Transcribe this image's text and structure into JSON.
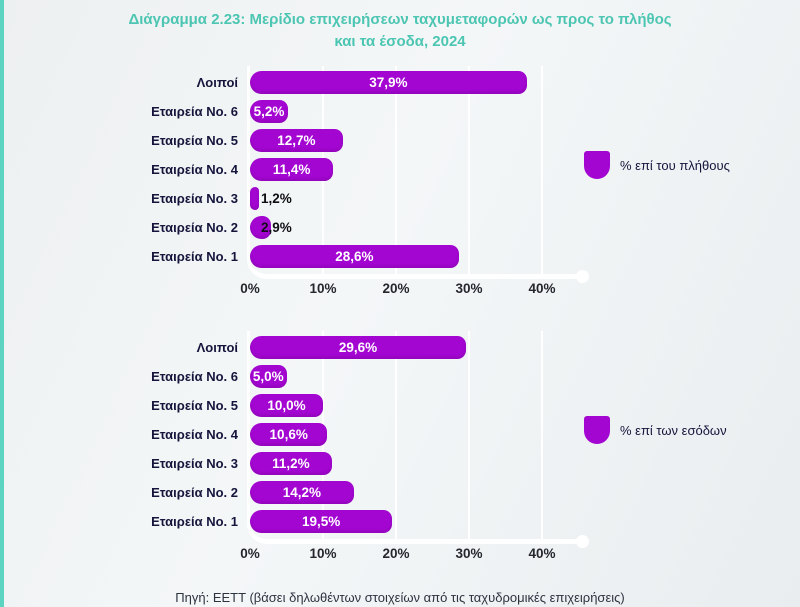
{
  "page": {
    "title": "Διάγραμμα 2.23: Μερίδιο επιχειρήσεων ταχυμεταφορών ως προς το πλήθος και τα έσοδα, 2024",
    "source": "Πηγή: ΕΕΤΤ (βάσει δηλωθέντων στοιχείων από τις ταχυδρομικές επιχειρήσεις)"
  },
  "colors": {
    "bar": "#a406d2",
    "title": "#4cc6b2",
    "edge_stripe": "#5cd4c1",
    "axis_line": "#ffffff",
    "category_text": "#15153c",
    "value_text_light": "#ffffff",
    "value_text_dark": "#0d0d12",
    "source_text": "#2e3340"
  },
  "chart_data": [
    {
      "type": "bar",
      "orientation": "horizontal",
      "legend": "% επί του πλήθους",
      "legend_position": "right",
      "grid": true,
      "categories": [
        "Λοιποί",
        "Εταιρεία No. 6",
        "Εταιρεία No. 5",
        "Εταιρεία No. 4",
        "Εταιρεία No. 3",
        "Εταιρεία No. 2",
        "Εταιρεία No. 1"
      ],
      "values": [
        37.9,
        5.2,
        12.7,
        11.4,
        1.2,
        2.9,
        28.6
      ],
      "value_labels": [
        "37,9%",
        "5,2%",
        "12,7%",
        "11,4%",
        "1,2%",
        "2,9%",
        "28,6%"
      ],
      "x_ticks": [
        "0%",
        "10%",
        "20%",
        "30%",
        "40%"
      ],
      "x_tick_values": [
        0,
        10,
        20,
        30,
        40
      ],
      "xlim": [
        0,
        45
      ]
    },
    {
      "type": "bar",
      "orientation": "horizontal",
      "legend": "% επί των εσόδων",
      "legend_position": "right",
      "grid": true,
      "categories": [
        "Λοιποί",
        "Εταιρεία No. 6",
        "Εταιρεία No. 5",
        "Εταιρεία No. 4",
        "Εταιρεία No. 3",
        "Εταιρεία No. 2",
        "Εταιρεία No. 1"
      ],
      "values": [
        29.6,
        5.0,
        10.0,
        10.6,
        11.2,
        14.2,
        19.5
      ],
      "value_labels": [
        "29,6%",
        "5,0%",
        "10,0%",
        "10,6%",
        "11,2%",
        "14,2%",
        "19,5%"
      ],
      "x_ticks": [
        "0%",
        "10%",
        "20%",
        "30%",
        "40%"
      ],
      "x_tick_values": [
        0,
        10,
        20,
        30,
        40
      ],
      "xlim": [
        0,
        45
      ]
    }
  ]
}
